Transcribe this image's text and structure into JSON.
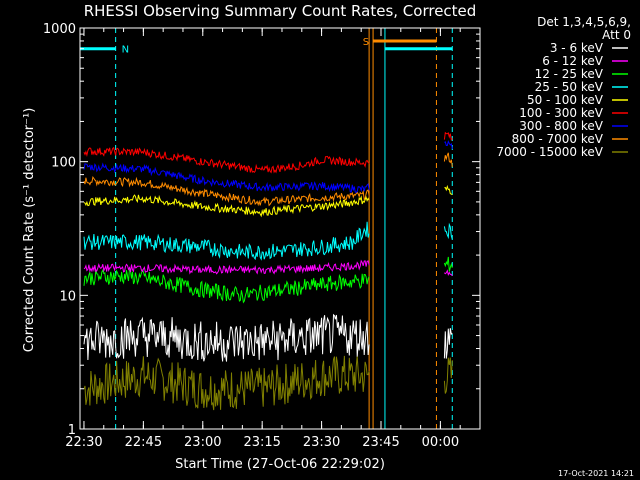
{
  "chart_data": {
    "type": "line",
    "title": "RHESSI Observing Summary Count Rates, Corrected",
    "ylabel": "Corrected Count Rate (s⁻¹ detector⁻¹)",
    "xlabel": "Start Time (27-Oct-06 22:29:02)",
    "y_scale": "log",
    "ylim": [
      1,
      1000
    ],
    "y_ticks": [
      {
        "v": 1,
        "label": "1"
      },
      {
        "v": 10,
        "label": "10"
      },
      {
        "v": 100,
        "label": "100"
      },
      {
        "v": 1000,
        "label": "1000"
      }
    ],
    "xlim": [
      "22:29",
      "00:10"
    ],
    "x_ticks": [
      "22:30",
      "22:45",
      "23:00",
      "23:15",
      "23:30",
      "23:45",
      "00:00"
    ],
    "legend_header": [
      "Det 1,3,4,5,6,9,",
      "Att 0"
    ],
    "legend_position": "right",
    "series": [
      {
        "name": "3 - 6 keV",
        "color": "#ffffff",
        "points": [
          [
            "22:30",
            4.5
          ],
          [
            "22:45",
            5.0
          ],
          [
            "23:00",
            4.5
          ],
          [
            "23:15",
            4.5
          ],
          [
            "23:30",
            5.0
          ],
          [
            "23:41",
            5.0
          ],
          [
            "00:02",
            4.5
          ],
          [
            "00:03",
            4.5
          ]
        ]
      },
      {
        "name": "6 - 12 keV",
        "color": "#ff00ff",
        "points": [
          [
            "22:30",
            16
          ],
          [
            "22:45",
            16
          ],
          [
            "23:00",
            15.5
          ],
          [
            "23:15",
            15.5
          ],
          [
            "23:30",
            16
          ],
          [
            "23:41",
            17
          ],
          [
            "00:02",
            15
          ],
          [
            "00:03",
            15
          ]
        ]
      },
      {
        "name": "12 - 25 keV",
        "color": "#00ff00",
        "points": [
          [
            "22:30",
            13.5
          ],
          [
            "22:40",
            14
          ],
          [
            "22:45",
            13.5
          ],
          [
            "23:00",
            11
          ],
          [
            "23:10",
            10
          ],
          [
            "23:15",
            10.5
          ],
          [
            "23:30",
            12
          ],
          [
            "23:41",
            13
          ],
          [
            "00:02",
            17
          ],
          [
            "00:03",
            17
          ]
        ]
      },
      {
        "name": "25 - 50 keV",
        "color": "#00ffff",
        "points": [
          [
            "22:30",
            25
          ],
          [
            "22:45",
            25
          ],
          [
            "23:00",
            23
          ],
          [
            "23:10",
            21
          ],
          [
            "23:20",
            21.5
          ],
          [
            "23:30",
            23
          ],
          [
            "23:38",
            25
          ],
          [
            "23:41",
            31
          ],
          [
            "00:02",
            31
          ],
          [
            "00:03",
            29
          ]
        ]
      },
      {
        "name": "50 - 100 keV",
        "color": "#ffff00",
        "points": [
          [
            "22:30",
            50
          ],
          [
            "22:45",
            53
          ],
          [
            "23:00",
            46
          ],
          [
            "23:15",
            42
          ],
          [
            "23:25",
            45
          ],
          [
            "23:35",
            48
          ],
          [
            "23:41",
            52
          ],
          [
            "00:02",
            62
          ],
          [
            "00:03",
            60
          ]
        ]
      },
      {
        "name": "100 - 300 keV",
        "color": "#ff0000",
        "points": [
          [
            "22:30",
            120
          ],
          [
            "22:45",
            118
          ],
          [
            "23:00",
            100
          ],
          [
            "23:15",
            86
          ],
          [
            "23:25",
            94
          ],
          [
            "23:30",
            103
          ],
          [
            "23:41",
            98
          ],
          [
            "00:02",
            160
          ],
          [
            "00:03",
            145
          ]
        ]
      },
      {
        "name": "300 - 800 keV",
        "color": "#0000ff",
        "points": [
          [
            "22:30",
            92
          ],
          [
            "22:45",
            88
          ],
          [
            "23:00",
            72
          ],
          [
            "23:15",
            64
          ],
          [
            "23:30",
            66
          ],
          [
            "23:41",
            62
          ],
          [
            "00:02",
            140
          ],
          [
            "00:03",
            125
          ]
        ]
      },
      {
        "name": "800 - 7000 keV",
        "color": "#ff8c00",
        "points": [
          [
            "22:30",
            72
          ],
          [
            "22:45",
            70
          ],
          [
            "23:00",
            58
          ],
          [
            "23:15",
            50
          ],
          [
            "23:30",
            54
          ],
          [
            "23:41",
            56
          ],
          [
            "00:02",
            110
          ],
          [
            "00:03",
            96
          ]
        ]
      },
      {
        "name": "7000 - 15000 keV",
        "color": "#808000",
        "points": [
          [
            "22:30",
            2.0
          ],
          [
            "22:45",
            2.5
          ],
          [
            "23:00",
            2.0
          ],
          [
            "23:15",
            2.0
          ],
          [
            "23:30",
            2.5
          ],
          [
            "23:41",
            2.5
          ],
          [
            "00:02",
            2.5
          ],
          [
            "00:03",
            2.5
          ]
        ]
      }
    ],
    "annotations": [
      {
        "type": "bar",
        "label": "N",
        "color": "#00ffff",
        "from": "22:29",
        "to": "22:38",
        "y": 700
      },
      {
        "type": "bar",
        "label": "S",
        "color": "#ff8c00",
        "from": "23:43",
        "to": "23:59",
        "y": 800
      },
      {
        "type": "bar",
        "label": "",
        "color": "#00ffff",
        "from": "23:46",
        "to": "00:03",
        "y": 700
      }
    ],
    "vlines": [
      {
        "t": "22:29",
        "color": "#00ffff",
        "style": "solid"
      },
      {
        "t": "22:38",
        "color": "#00ffff",
        "style": "dashed"
      },
      {
        "t": "23:42",
        "color": "#ff8c00",
        "style": "solid"
      },
      {
        "t": "23:43",
        "color": "#ff8c00",
        "style": "solid"
      },
      {
        "t": "23:46",
        "color": "#00ffff",
        "style": "solid"
      },
      {
        "t": "23:59",
        "color": "#ff8c00",
        "style": "dashed"
      },
      {
        "t": "00:03",
        "color": "#00ffff",
        "style": "dashed"
      }
    ],
    "gaps": [
      [
        "23:42",
        "00:01"
      ]
    ],
    "timestamp": "17-Oct-2021 14:21"
  }
}
